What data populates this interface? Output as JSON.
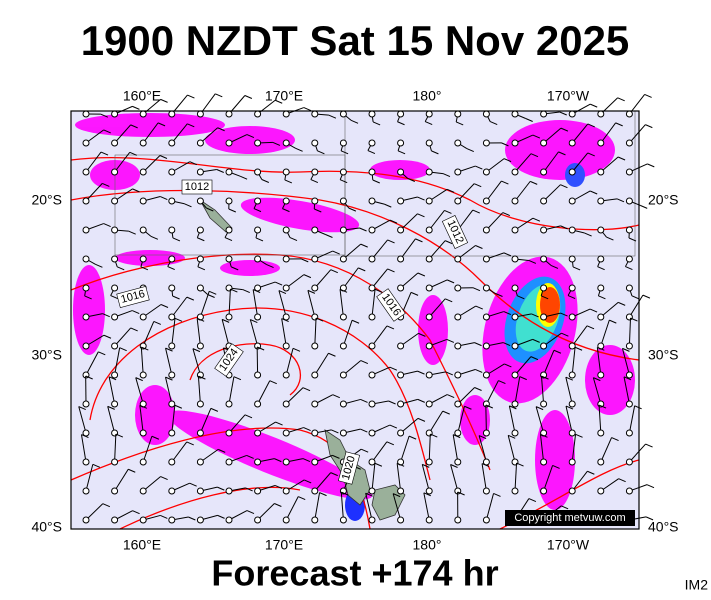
{
  "header": {
    "title": "1900 NZDT Sat 15 Nov 2025"
  },
  "map": {
    "longitude_labels": [
      "160°E",
      "170°E",
      "180°",
      "170°W"
    ],
    "latitude_labels": [
      "20°S",
      "30°S",
      "40°S"
    ],
    "isobar_labels": [
      "1012",
      "1012",
      "1016",
      "1016",
      "1024",
      "1020"
    ],
    "copyright": "Copyright metvuw.com"
  },
  "footer": {
    "forecast": "Forecast +174 hr",
    "code": "IM2"
  }
}
